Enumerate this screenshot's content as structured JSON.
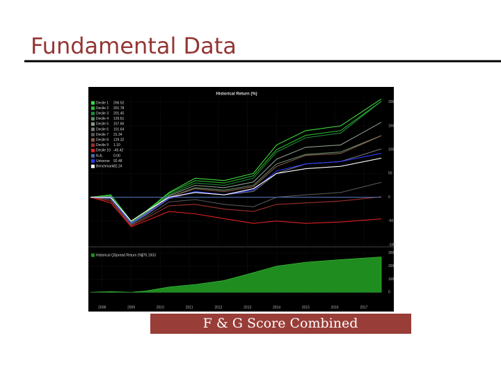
{
  "title": "Fundamental Data",
  "caption": "F & G Score Combined",
  "chart_data": [
    {
      "type": "line",
      "title": "Historical Return (%)",
      "x": [
        2007.6,
        2008.3,
        2009.0,
        2009.5,
        2010.3,
        2011.2,
        2012.2,
        2013.2,
        2014.0,
        2015.0,
        2016.2,
        2017.6
      ],
      "xlim": [
        2007.6,
        2017.6
      ],
      "xticks": [
        2008,
        2009,
        2010,
        2011,
        2012,
        2013,
        2014,
        2015,
        2016,
        2017
      ],
      "ylim": [
        -100,
        210
      ],
      "yticks": [
        200,
        150,
        100,
        50,
        0,
        -50,
        -100
      ],
      "grid": true,
      "series": [
        {
          "name": "Decile 1",
          "legend_value": "206.52",
          "color": "#3ddc3d",
          "values": [
            0,
            5,
            -50,
            -30,
            10,
            40,
            35,
            50,
            110,
            140,
            150,
            206.52
          ]
        },
        {
          "name": "Decile 2",
          "legend_value": "201.78",
          "color": "#2fb52f",
          "values": [
            0,
            3,
            -52,
            -32,
            8,
            35,
            30,
            45,
            100,
            130,
            140,
            201.78
          ]
        },
        {
          "name": "Decile 3",
          "legend_value": "201.45",
          "color": "#1f8a3a",
          "values": [
            0,
            2,
            -53,
            -33,
            5,
            30,
            25,
            40,
            95,
            125,
            135,
            201.45
          ]
        },
        {
          "name": "Decile 4",
          "legend_value": "129.61",
          "color": "#5f8a6a",
          "values": [
            0,
            0,
            -55,
            -35,
            0,
            20,
            15,
            25,
            70,
            90,
            95,
            129.61
          ]
        },
        {
          "name": "Decile 5",
          "legend_value": "157.66",
          "color": "#8a9a8a",
          "values": [
            0,
            1,
            -54,
            -34,
            3,
            25,
            20,
            32,
            80,
            105,
            110,
            157.66
          ]
        },
        {
          "name": "Decile 6",
          "legend_value": "101.64",
          "color": "#777777",
          "values": [
            0,
            -2,
            -56,
            -38,
            -3,
            12,
            5,
            12,
            50,
            70,
            75,
            101.64
          ]
        },
        {
          "name": "Decile 7",
          "legend_value": "31.34",
          "color": "#555555",
          "values": [
            0,
            -5,
            -58,
            -42,
            -10,
            -5,
            -15,
            -20,
            0,
            5,
            10,
            31.34
          ]
        },
        {
          "name": "Decile 8",
          "legend_value": "129.32",
          "color": "#8a5a4a",
          "values": [
            0,
            -1,
            -55,
            -36,
            0,
            18,
            12,
            22,
            65,
            88,
            92,
            129.32
          ]
        },
        {
          "name": "Decile 9",
          "legend_value": "1.10",
          "color": "#a0302a",
          "values": [
            0,
            -8,
            -60,
            -45,
            -18,
            -15,
            -25,
            -30,
            -15,
            -12,
            -8,
            1.1
          ]
        },
        {
          "name": "Decile 10",
          "legend_value": "-45.42",
          "color": "#e02020",
          "values": [
            0,
            -12,
            -62,
            -50,
            -30,
            -35,
            -45,
            -55,
            -50,
            -55,
            -52,
            -45.42
          ]
        },
        {
          "name": "N.A.",
          "legend_value": "0.00",
          "color": "#4a6aa8",
          "values": [
            0,
            0,
            0,
            0,
            0,
            0,
            0,
            0,
            0,
            0,
            0,
            0.0
          ]
        },
        {
          "name": "Universe",
          "legend_value": "92.48",
          "color": "#2a3aff",
          "values": [
            0,
            -2,
            -55,
            -36,
            -2,
            12,
            5,
            15,
            55,
            70,
            75,
            92.48
          ]
        },
        {
          "name": "Benchmark",
          "legend_value": "82.24",
          "color": "#ffffff",
          "values": [
            0,
            -1,
            -50,
            -30,
            0,
            10,
            5,
            18,
            50,
            60,
            65,
            82.24
          ]
        }
      ]
    },
    {
      "type": "area",
      "x": [
        2007.6,
        2008.3,
        2009.0,
        2009.5,
        2010.3,
        2011.2,
        2012.2,
        2013.2,
        2014.0,
        2015.0,
        2016.2,
        2017.6
      ],
      "xlim": [
        2007.6,
        2017.6
      ],
      "xticks": [
        2008,
        2009,
        2010,
        2011,
        2012,
        2013,
        2014,
        2015,
        2016,
        2017
      ],
      "ylim": [
        -20,
        310
      ],
      "yticks": [
        300,
        200,
        100,
        0
      ],
      "series": [
        {
          "name": "Historical QSpread Return (%)",
          "legend_value": "270.1933",
          "color": "#1e8c1e",
          "values": [
            0,
            5,
            0,
            10,
            40,
            60,
            90,
            150,
            200,
            230,
            250,
            270.1933
          ]
        }
      ]
    }
  ]
}
